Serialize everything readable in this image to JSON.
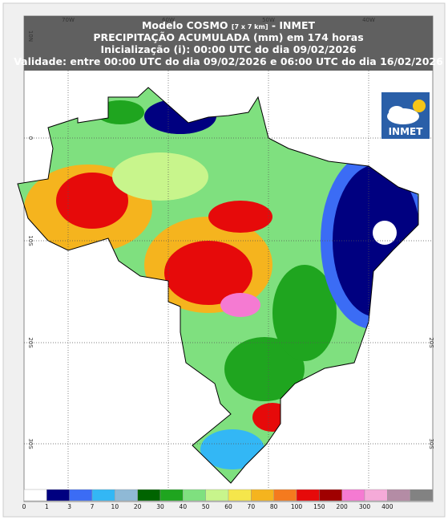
{
  "header": {
    "model": "Modelo COSMO",
    "resolution": "[7 x 7 km]",
    "org": "- INMET",
    "line2": "PRECIPITAÇÃO ACUMULADA (mm) em 174 horas",
    "line3": "Inicialização (i): 00:00 UTC do dia 09/02/2026",
    "line4": "Validade: entre 00:00 UTC do dia 09/02/2026 e 06:00 UTC do dia 16/02/2026"
  },
  "logo": {
    "text": "INMET"
  },
  "longitude_labels": [
    "70W",
    "60W",
    "50W",
    "40W"
  ],
  "latitude_labels": [
    "10N",
    "0",
    "10S",
    "20S",
    "30S"
  ],
  "colorbar": {
    "labels": [
      "0",
      "1",
      "3",
      "7",
      "10",
      "20",
      "30",
      "40",
      "50",
      "60",
      "70",
      "80",
      "100",
      "150",
      "200",
      "300",
      "400"
    ],
    "colors": [
      "#ffffff",
      "#000080",
      "#3b6cf5",
      "#33b7f5",
      "#8fb9d6",
      "#006400",
      "#1fa51f",
      "#7fe07f",
      "#c8f58c",
      "#f5e64b",
      "#f5b41e",
      "#f57a1e",
      "#e60a0a",
      "#a00000",
      "#f57ad2",
      "#f5aad8",
      "#b48ca5",
      "#828282"
    ]
  }
}
